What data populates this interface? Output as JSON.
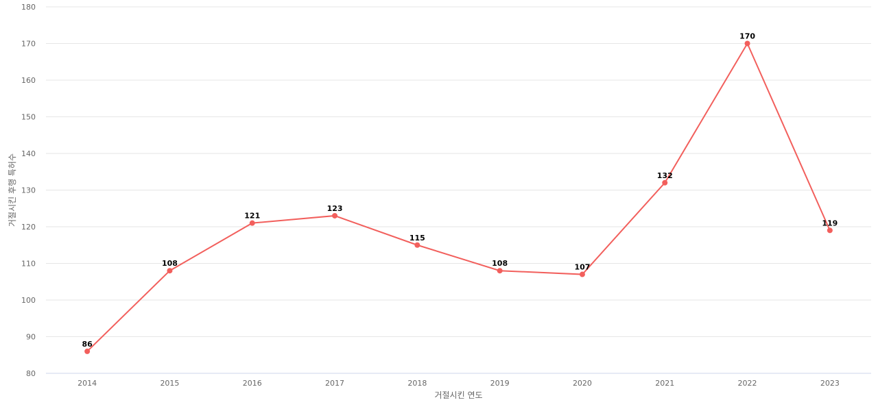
{
  "chart_data": {
    "type": "line",
    "title": "",
    "xlabel": "거절시킨 연도",
    "ylabel": "거절시킨 후행 특허수",
    "categories": [
      "2014",
      "2015",
      "2016",
      "2017",
      "2018",
      "2019",
      "2020",
      "2021",
      "2022",
      "2023"
    ],
    "series": [
      {
        "values": [
          86,
          108,
          121,
          123,
          115,
          108,
          107,
          132,
          170,
          119
        ],
        "color": "#f25f5c"
      }
    ],
    "ylim": [
      80,
      180
    ],
    "yticks": [
      80,
      90,
      100,
      110,
      120,
      130,
      140,
      150,
      160,
      170,
      180
    ],
    "grid": true,
    "legend": "none",
    "data_labels": true
  }
}
